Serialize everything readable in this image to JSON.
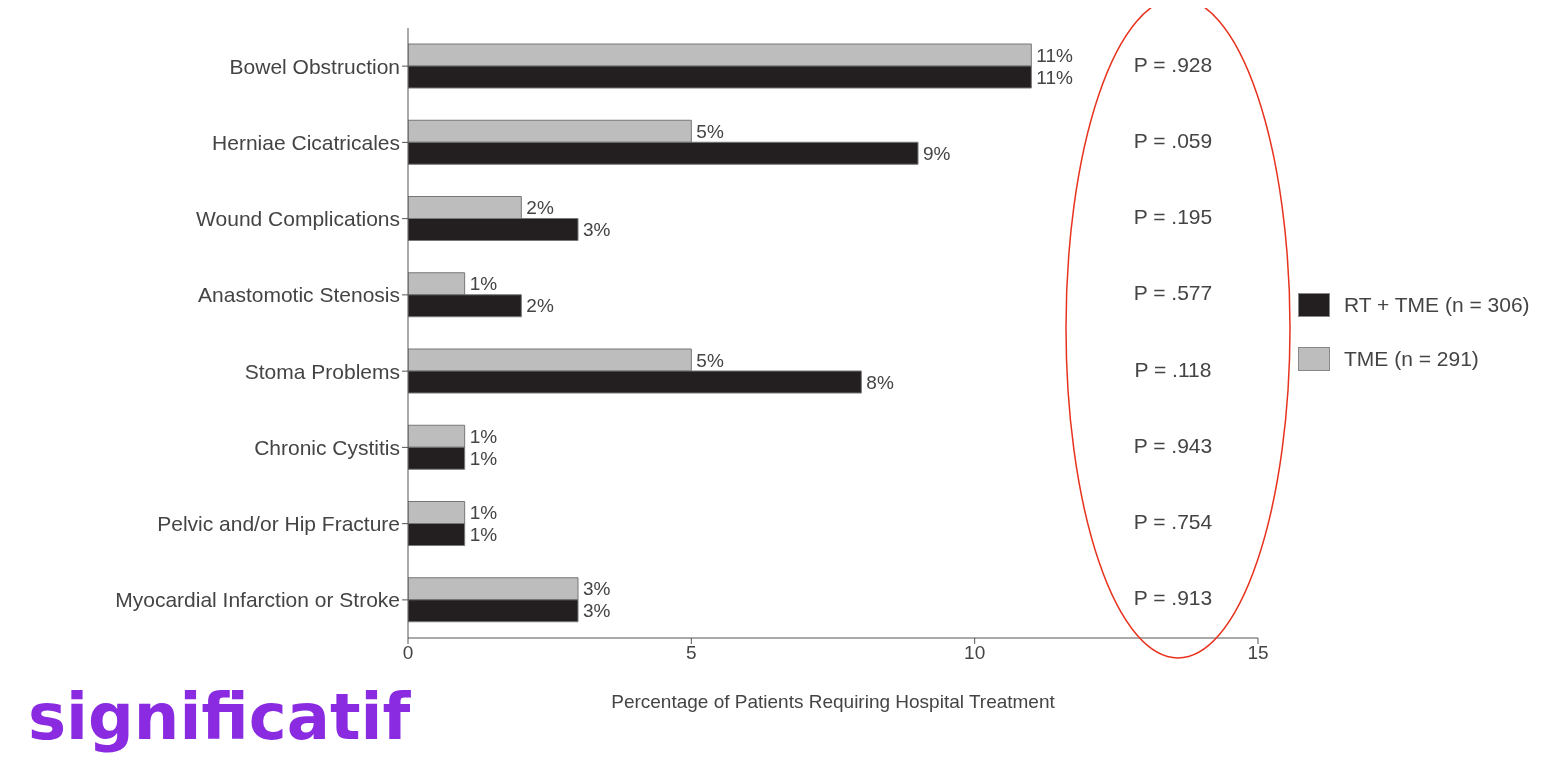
{
  "chart_data": {
    "type": "bar",
    "orientation": "horizontal",
    "xlabel": "Percentage of Patients Requiring Hospital Treatment",
    "categories": [
      "Bowel Obstruction",
      "Herniae Cicatricales",
      "Wound Complications",
      "Anastomotic Stenosis",
      "Stoma Problems",
      "Chronic Cystitis",
      "Pelvic and/or Hip Fracture",
      "Myocardial Infarction or Stroke"
    ],
    "series": [
      {
        "name": "RT + TME (n = 306)",
        "color": "#231f20",
        "values": [
          11,
          9,
          3,
          2,
          8,
          1,
          1,
          3
        ],
        "value_labels": [
          "11%",
          "9%",
          "3%",
          "2%",
          "8%",
          "1%",
          "1%",
          "3%"
        ]
      },
      {
        "name": "TME (n = 291)",
        "color": "#bdbdbd",
        "values": [
          11,
          5,
          2,
          1,
          5,
          1,
          1,
          3
        ],
        "value_labels": [
          "11%",
          "5%",
          "2%",
          "1%",
          "5%",
          "1%",
          "1%",
          "3%"
        ]
      }
    ],
    "xlim": [
      0,
      15
    ],
    "xticks": [
      0,
      5,
      10,
      15
    ],
    "grid": false,
    "legend": "right",
    "annotations": [
      "P = .928",
      "P = .059",
      "P = .195",
      "P = .577",
      "P = .118",
      "P = .943",
      "P = .754",
      "P = .913",
      "significatif"
    ]
  }
}
